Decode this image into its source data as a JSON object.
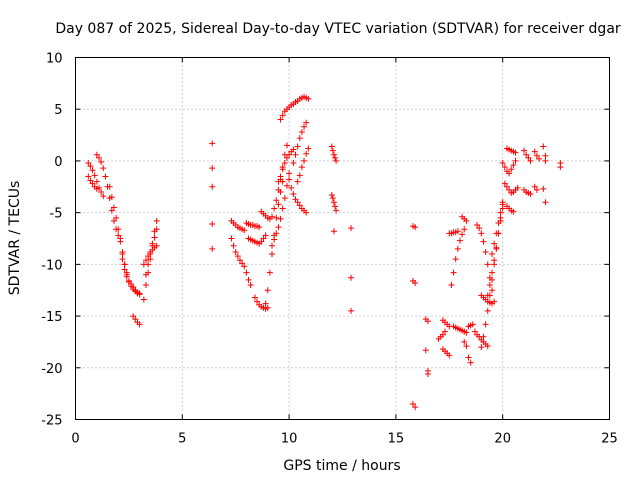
{
  "chart_data": {
    "type": "scatter",
    "title": "Day 087 of 2025, Sidereal Day-to-day VTEC variation (SDTVAR) for receiver dgar",
    "xlabel": "GPS time / hours",
    "ylabel": "SDTVAR / TECUs",
    "xlim": [
      0,
      25
    ],
    "ylim": [
      -25,
      10
    ],
    "xticks": [
      0,
      5,
      10,
      15,
      20,
      25
    ],
    "yticks": [
      -25,
      -20,
      -15,
      -10,
      -5,
      0,
      5,
      10
    ],
    "grid": true,
    "marker": "+",
    "color": "#ff0000",
    "series": [
      {
        "name": "arc1",
        "x": [
          0.6,
          0.7,
          0.8,
          0.9,
          1.0
        ],
        "y": [
          -1.5,
          -1.9,
          -2.2,
          -2.5,
          -2.7
        ]
      },
      {
        "name": "arc2",
        "x": [
          0.6,
          0.7,
          0.8,
          0.9,
          1.0,
          1.1,
          1.2,
          1.3
        ],
        "y": [
          -0.2,
          -0.5,
          -0.9,
          -1.4,
          -2.0,
          -2.6,
          -3.0,
          -3.4
        ]
      },
      {
        "name": "arc3",
        "x": [
          1.0,
          1.1,
          1.2,
          1.3,
          1.4,
          1.5,
          1.6,
          1.7,
          1.8,
          1.9,
          2.0
        ],
        "y": [
          0.6,
          0.3,
          -0.1,
          -0.7,
          -1.5,
          -2.5,
          -3.6,
          -4.8,
          -5.8,
          -6.6,
          -7.2
        ]
      },
      {
        "name": "arc4",
        "x": [
          1.6,
          1.7,
          1.8,
          1.9,
          2.0,
          2.1,
          2.2,
          2.3,
          2.4
        ],
        "y": [
          -2.5,
          -3.5,
          -4.5,
          -5.5,
          -6.6,
          -7.8,
          -9.0,
          -10.0,
          -10.8
        ]
      },
      {
        "name": "arc5",
        "x": [
          2.1,
          2.2,
          2.3,
          2.4,
          2.5,
          2.6,
          2.7,
          2.8,
          2.9,
          3.0
        ],
        "y": [
          -7.5,
          -8.8,
          -10.0,
          -11.0,
          -11.7,
          -12.1,
          -12.4,
          -12.6,
          -12.8,
          -12.9
        ]
      },
      {
        "name": "arc6",
        "x": [
          2.2,
          2.3,
          2.4,
          2.5,
          2.6,
          2.7,
          2.8,
          2.9,
          3.0
        ],
        "y": [
          -9.5,
          -10.5,
          -11.2,
          -11.6,
          -11.9,
          -12.2,
          -12.5,
          -12.7,
          -12.8
        ]
      },
      {
        "name": "arc7",
        "x": [
          2.7,
          2.8,
          2.9,
          3.0
        ],
        "y": [
          -15.0,
          -15.3,
          -15.6,
          -15.8
        ]
      },
      {
        "name": "arc8",
        "x": [
          3.2,
          3.3,
          3.4,
          3.5,
          3.6,
          3.7,
          3.8
        ],
        "y": [
          -13.4,
          -12.0,
          -10.8,
          -9.5,
          -8.0,
          -6.8,
          -5.8
        ]
      },
      {
        "name": "arc9",
        "x": [
          3.3,
          3.4,
          3.5,
          3.6,
          3.7,
          3.8
        ],
        "y": [
          -11.0,
          -10.0,
          -9.0,
          -8.2,
          -7.4,
          -6.6
        ]
      },
      {
        "name": "arc10",
        "x": [
          3.2,
          3.3,
          3.4,
          3.5,
          3.6,
          3.7,
          3.8
        ],
        "y": [
          -10.0,
          -9.6,
          -9.2,
          -8.8,
          -8.6,
          -8.4,
          -8.2
        ]
      },
      {
        "name": "isolated-6",
        "x": [
          6.4,
          6.4,
          6.4,
          6.4,
          6.4
        ],
        "y": [
          1.7,
          -0.7,
          -2.5,
          -6.1,
          -8.5
        ]
      },
      {
        "name": "arc11",
        "x": [
          7.3,
          7.4,
          7.5,
          7.6,
          7.7,
          7.8
        ],
        "y": [
          -7.5,
          -8.2,
          -8.8,
          -9.2,
          -9.6,
          -9.9
        ]
      },
      {
        "name": "arc12",
        "x": [
          7.3,
          7.4,
          7.5,
          7.6,
          7.7,
          7.8,
          7.9
        ],
        "y": [
          -5.8,
          -6.0,
          -6.2,
          -6.4,
          -6.5,
          -6.6,
          -6.7
        ]
      },
      {
        "name": "arc13",
        "x": [
          7.9,
          8.0,
          8.1,
          8.2
        ],
        "y": [
          -10.2,
          -10.8,
          -11.5,
          -12.0
        ]
      },
      {
        "name": "arc14",
        "x": [
          8.0,
          8.1,
          8.2,
          8.3,
          8.4,
          8.5,
          8.6
        ],
        "y": [
          -6.0,
          -6.1,
          -6.2,
          -6.2,
          -6.3,
          -6.3,
          -6.4
        ]
      },
      {
        "name": "arc15",
        "x": [
          8.1,
          8.2,
          8.3,
          8.4,
          8.5,
          8.6,
          8.7,
          8.8,
          8.9
        ],
        "y": [
          -7.5,
          -7.6,
          -7.7,
          -7.8,
          -7.9,
          -8.0,
          -7.8,
          -7.5,
          -7.2
        ]
      },
      {
        "name": "arc16",
        "x": [
          8.4,
          8.5,
          8.6,
          8.7,
          8.8,
          8.9,
          9.0
        ],
        "y": [
          -13.2,
          -13.6,
          -13.9,
          -14.1,
          -14.2,
          -14.3,
          -14.2
        ]
      },
      {
        "name": "arc17",
        "x": [
          8.7,
          8.8,
          8.9,
          9.0,
          9.1,
          9.2,
          9.3,
          9.4,
          9.5,
          9.6,
          9.7,
          9.8,
          9.9
        ],
        "y": [
          -4.9,
          -5.1,
          -5.3,
          -5.5,
          -5.6,
          -5.4,
          -4.6,
          -3.8,
          -2.8,
          -1.8,
          -0.6,
          0.6,
          1.5
        ]
      },
      {
        "name": "arc18",
        "x": [
          8.9,
          9.0,
          9.1,
          9.2,
          9.3,
          9.4,
          9.5,
          9.6,
          9.7
        ],
        "y": [
          -13.8,
          -12.5,
          -10.8,
          -9.0,
          -7.2,
          -5.5,
          -4.2,
          -3.0,
          -2.0
        ]
      },
      {
        "name": "arc19",
        "x": [
          9.2,
          9.3,
          9.4,
          9.5,
          9.6,
          9.7,
          9.8,
          9.9,
          10.0
        ],
        "y": [
          -8.2,
          -7.6,
          -7.0,
          -6.4,
          -5.6,
          -4.6,
          -3.6,
          -2.4,
          -1.2
        ]
      },
      {
        "name": "arc20",
        "x": [
          9.6,
          9.7,
          9.8,
          9.9,
          10.0,
          10.1,
          10.2,
          10.3,
          10.4,
          10.5,
          10.6,
          10.7,
          10.8,
          10.9
        ],
        "y": [
          4.0,
          4.4,
          4.8,
          5.0,
          5.2,
          5.4,
          5.5,
          5.7,
          5.8,
          6.0,
          6.1,
          6.2,
          6.1,
          6.0
        ]
      },
      {
        "name": "arc21",
        "x": [
          9.5,
          9.6,
          9.7,
          9.8,
          9.9,
          10.0,
          10.1,
          10.2
        ],
        "y": [
          -2.0,
          -1.5,
          -0.8,
          -0.2,
          0.3,
          0.6,
          0.9,
          1.1
        ]
      },
      {
        "name": "arc22",
        "x": [
          10.0,
          10.1,
          10.2,
          10.3,
          10.4,
          10.5,
          10.6,
          10.7,
          10.8
        ],
        "y": [
          -1.8,
          -2.6,
          -3.2,
          -3.7,
          -4.0,
          -4.3,
          -4.6,
          -4.8,
          -5.0
        ]
      },
      {
        "name": "arc23",
        "x": [
          10.2,
          10.3,
          10.4,
          10.5,
          10.6,
          10.7,
          10.8
        ],
        "y": [
          -0.2,
          0.6,
          1.4,
          2.2,
          2.8,
          3.3,
          3.7
        ]
      },
      {
        "name": "arc24",
        "x": [
          10.4,
          10.5,
          10.6,
          10.7,
          10.8,
          10.9
        ],
        "y": [
          -2.0,
          -1.4,
          -0.6,
          0.0,
          0.7,
          1.2
        ]
      },
      {
        "name": "arc25",
        "x": [
          12.0,
          12.05,
          12.1,
          12.15,
          12.2
        ],
        "y": [
          1.4,
          1.0,
          0.6,
          0.3,
          0.0
        ]
      },
      {
        "name": "arc26",
        "x": [
          12.0,
          12.05,
          12.1,
          12.15,
          12.2
        ],
        "y": [
          -3.3,
          -3.6,
          -4.0,
          -4.4,
          -4.8
        ]
      },
      {
        "name": "isolated-12",
        "x": [
          12.1,
          12.9,
          12.9,
          12.9
        ],
        "y": [
          -6.8,
          -6.5,
          -11.3,
          -14.5
        ]
      },
      {
        "name": "arc27",
        "x": [
          15.8,
          15.9
        ],
        "y": [
          -6.3,
          -6.4
        ]
      },
      {
        "name": "arc28",
        "x": [
          15.8,
          15.9
        ],
        "y": [
          -11.6,
          -11.8
        ]
      },
      {
        "name": "arc29",
        "x": [
          15.8,
          15.9
        ],
        "y": [
          -23.5,
          -23.8
        ]
      },
      {
        "name": "arc30",
        "x": [
          16.4,
          16.5
        ],
        "y": [
          -15.3,
          -15.5
        ]
      },
      {
        "name": "arc31",
        "x": [
          16.4,
          16.5,
          16.5
        ],
        "y": [
          -18.3,
          -20.3,
          -20.6
        ]
      },
      {
        "name": "arc32",
        "x": [
          17.0,
          17.1,
          17.2,
          17.3
        ],
        "y": [
          -17.2,
          -17.0,
          -16.8,
          -16.5
        ]
      },
      {
        "name": "arc33",
        "x": [
          17.2,
          17.3,
          17.4,
          17.5
        ],
        "y": [
          -15.4,
          -15.6,
          -15.8,
          -16.0
        ]
      },
      {
        "name": "arc34",
        "x": [
          17.2,
          17.3,
          17.4,
          17.5
        ],
        "y": [
          -18.2,
          -18.4,
          -18.6,
          -18.8
        ]
      },
      {
        "name": "arc35",
        "x": [
          17.6,
          17.7,
          17.8,
          17.9,
          18.0,
          18.1,
          18.2
        ],
        "y": [
          -12.0,
          -10.8,
          -9.5,
          -8.5,
          -7.7,
          -7.1,
          -6.6
        ]
      },
      {
        "name": "arc36",
        "x": [
          17.5,
          17.6,
          17.7,
          17.8,
          17.9
        ],
        "y": [
          -7.0,
          -7.0,
          -6.9,
          -6.9,
          -6.8
        ]
      },
      {
        "name": "arc37",
        "x": [
          17.7,
          17.8,
          17.9,
          18.0,
          18.1,
          18.2,
          18.3
        ],
        "y": [
          -16.0,
          -16.1,
          -16.2,
          -16.3,
          -16.4,
          -16.5,
          -16.6
        ]
      },
      {
        "name": "arc38",
        "x": [
          18.1,
          18.2,
          18.3
        ],
        "y": [
          -5.4,
          -5.6,
          -5.8
        ]
      },
      {
        "name": "arc39",
        "x": [
          18.2,
          18.3
        ],
        "y": [
          -17.5,
          -17.9
        ]
      },
      {
        "name": "arc40",
        "x": [
          18.4,
          18.5,
          18.6
        ],
        "y": [
          -16.0,
          -15.9,
          -15.8
        ]
      },
      {
        "name": "arc41",
        "x": [
          18.4,
          18.5
        ],
        "y": [
          -19.0,
          -19.5
        ]
      },
      {
        "name": "arc42",
        "x": [
          18.7,
          18.8,
          18.9,
          19.0,
          19.1,
          19.2,
          19.3
        ],
        "y": [
          -16.5,
          -16.8,
          -17.0,
          -17.3,
          -17.5,
          -17.7,
          -17.9
        ]
      },
      {
        "name": "arc43",
        "x": [
          18.8,
          18.9,
          19.0,
          19.1,
          19.2,
          19.3,
          19.4,
          19.5,
          19.6
        ],
        "y": [
          -6.2,
          -6.5,
          -7.0,
          -7.8,
          -8.8,
          -10.0,
          -11.3,
          -12.5,
          -13.6
        ]
      },
      {
        "name": "arc44",
        "x": [
          19.0,
          19.1,
          19.2,
          19.3,
          19.4,
          19.5
        ],
        "y": [
          -13.0,
          -13.2,
          -13.4,
          -13.6,
          -13.7,
          -13.8
        ]
      },
      {
        "name": "arc45",
        "x": [
          19.0,
          19.1,
          19.2,
          19.3,
          19.4,
          19.5,
          19.6,
          19.7,
          19.8,
          19.9,
          20.0
        ],
        "y": [
          -18.0,
          -17.0,
          -15.8,
          -14.5,
          -13.0,
          -11.5,
          -10.0,
          -8.5,
          -7.0,
          -5.5,
          -4.0
        ]
      },
      {
        "name": "arc46",
        "x": [
          19.3,
          19.4,
          19.5,
          19.6,
          19.7,
          19.8,
          19.9,
          20.0
        ],
        "y": [
          -13.0,
          -12.0,
          -10.8,
          -9.6,
          -8.4,
          -7.0,
          -5.8,
          -4.6
        ]
      },
      {
        "name": "arc47",
        "x": [
          19.5,
          19.6,
          19.7,
          19.8,
          19.9,
          20.0
        ],
        "y": [
          -9.0,
          -8.0,
          -7.0,
          -6.0,
          -5.0,
          -4.2
        ]
      },
      {
        "name": "arc48",
        "x": [
          20.0,
          20.1,
          20.2,
          20.3,
          20.4,
          20.5,
          20.6
        ],
        "y": [
          -0.2,
          -0.6,
          -1.0,
          -1.2,
          -0.8,
          -0.4,
          0.0
        ]
      },
      {
        "name": "arc49",
        "x": [
          20.2,
          20.3,
          20.4,
          20.5,
          20.6
        ],
        "y": [
          1.2,
          1.1,
          1.0,
          0.9,
          0.8
        ]
      },
      {
        "name": "arc50",
        "x": [
          20.1,
          20.2,
          20.3,
          20.4,
          20.5,
          20.6,
          20.7
        ],
        "y": [
          -2.2,
          -2.5,
          -2.8,
          -3.1,
          -3.0,
          -2.8,
          -2.6
        ]
      },
      {
        "name": "arc51",
        "x": [
          20.2,
          20.3,
          20.4,
          20.5
        ],
        "y": [
          -4.4,
          -4.6,
          -4.8,
          -4.9
        ]
      },
      {
        "name": "arc52",
        "x": [
          21.0,
          21.1,
          21.2,
          21.3
        ],
        "y": [
          1.0,
          0.6,
          0.3,
          0.0
        ]
      },
      {
        "name": "arc53",
        "x": [
          21.0,
          21.1,
          21.2,
          21.3
        ],
        "y": [
          -2.8,
          -3.0,
          -3.1,
          -3.2
        ]
      },
      {
        "name": "arc54",
        "x": [
          21.5,
          21.6,
          21.7
        ],
        "y": [
          0.9,
          0.5,
          0.2
        ]
      },
      {
        "name": "arc55",
        "x": [
          21.5,
          21.6
        ],
        "y": [
          -2.5,
          -2.8
        ]
      },
      {
        "name": "arc56",
        "x": [
          21.9,
          22.0,
          22.0
        ],
        "y": [
          1.4,
          0.5,
          0.0
        ]
      },
      {
        "name": "isolated-22",
        "x": [
          21.9,
          22.0,
          22.7,
          22.7
        ],
        "y": [
          -2.7,
          -4.0,
          -0.2,
          -0.6
        ]
      }
    ]
  }
}
